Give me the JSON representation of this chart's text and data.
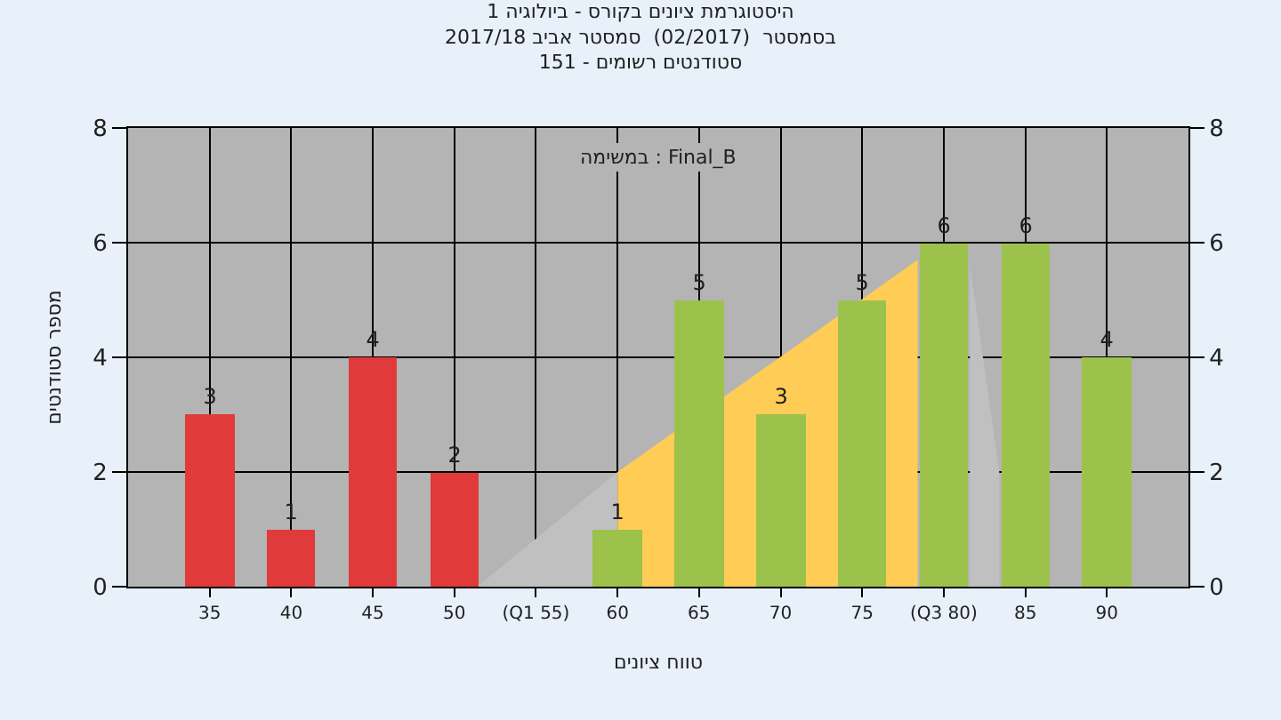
{
  "chart_data": {
    "type": "bar",
    "title": "היסטוגרמת ציונים בקורס - ביולוגיה 1",
    "subtitle": "בסמסטר  (02/2017)  סמסטר אביב 2017/18\nסטודנטים רשומים - 151",
    "xlabel": "טווח ציונים",
    "ylabel": "מספר סטודנטים",
    "annotations": [
      "במשימה : Final_B"
    ],
    "x": [
      35,
      40,
      45,
      50,
      55,
      60,
      65,
      70,
      75,
      80,
      85,
      90
    ],
    "series": [
      {
        "type": "area",
        "x": [
          51.4,
          60
        ],
        "values": [
          0,
          2
        ],
        "color": "#c0c0c0"
      },
      {
        "type": "area",
        "x": [
          60,
          78.4
        ],
        "values": [
          2,
          5.7
        ],
        "color": "#ffcc55"
      },
      {
        "type": "area",
        "x": [
          81.6,
          83.4,
          83.4
        ],
        "values": [
          5.6,
          2,
          0
        ],
        "color": "#c0c0c0"
      },
      {
        "values": [
          3,
          1,
          4,
          2,
          0,
          1,
          5,
          3,
          5,
          6,
          6,
          4
        ],
        "value_labels": [
          "3",
          "1",
          "4",
          "2",
          null,
          "1",
          "5",
          "3",
          "5",
          "6",
          "6",
          "4"
        ],
        "colors": [
          "#e03a3a",
          "#e03a3a",
          "#e03a3a",
          "#e03a3a",
          "#9cc24c",
          "#9cc24c",
          "#9cc24c",
          "#9cc24c",
          "#9cc24c",
          "#9cc24c",
          "#9cc24c",
          "#9cc24c"
        ]
      }
    ],
    "xlim": [
      30,
      95
    ],
    "xticks": [
      35,
      40,
      45,
      50,
      {
        "value": 55,
        "label": "(Q1 55)"
      },
      60,
      65,
      70,
      75,
      {
        "value": 80,
        "label": "(Q3 80)"
      },
      85,
      90
    ],
    "ylim": [
      0,
      8
    ],
    "yticks": [
      0,
      2,
      4,
      6,
      8
    ],
    "y2lim": [
      0,
      8
    ],
    "y2ticks": [
      0,
      2,
      4,
      6,
      8
    ],
    "grid": true
  }
}
